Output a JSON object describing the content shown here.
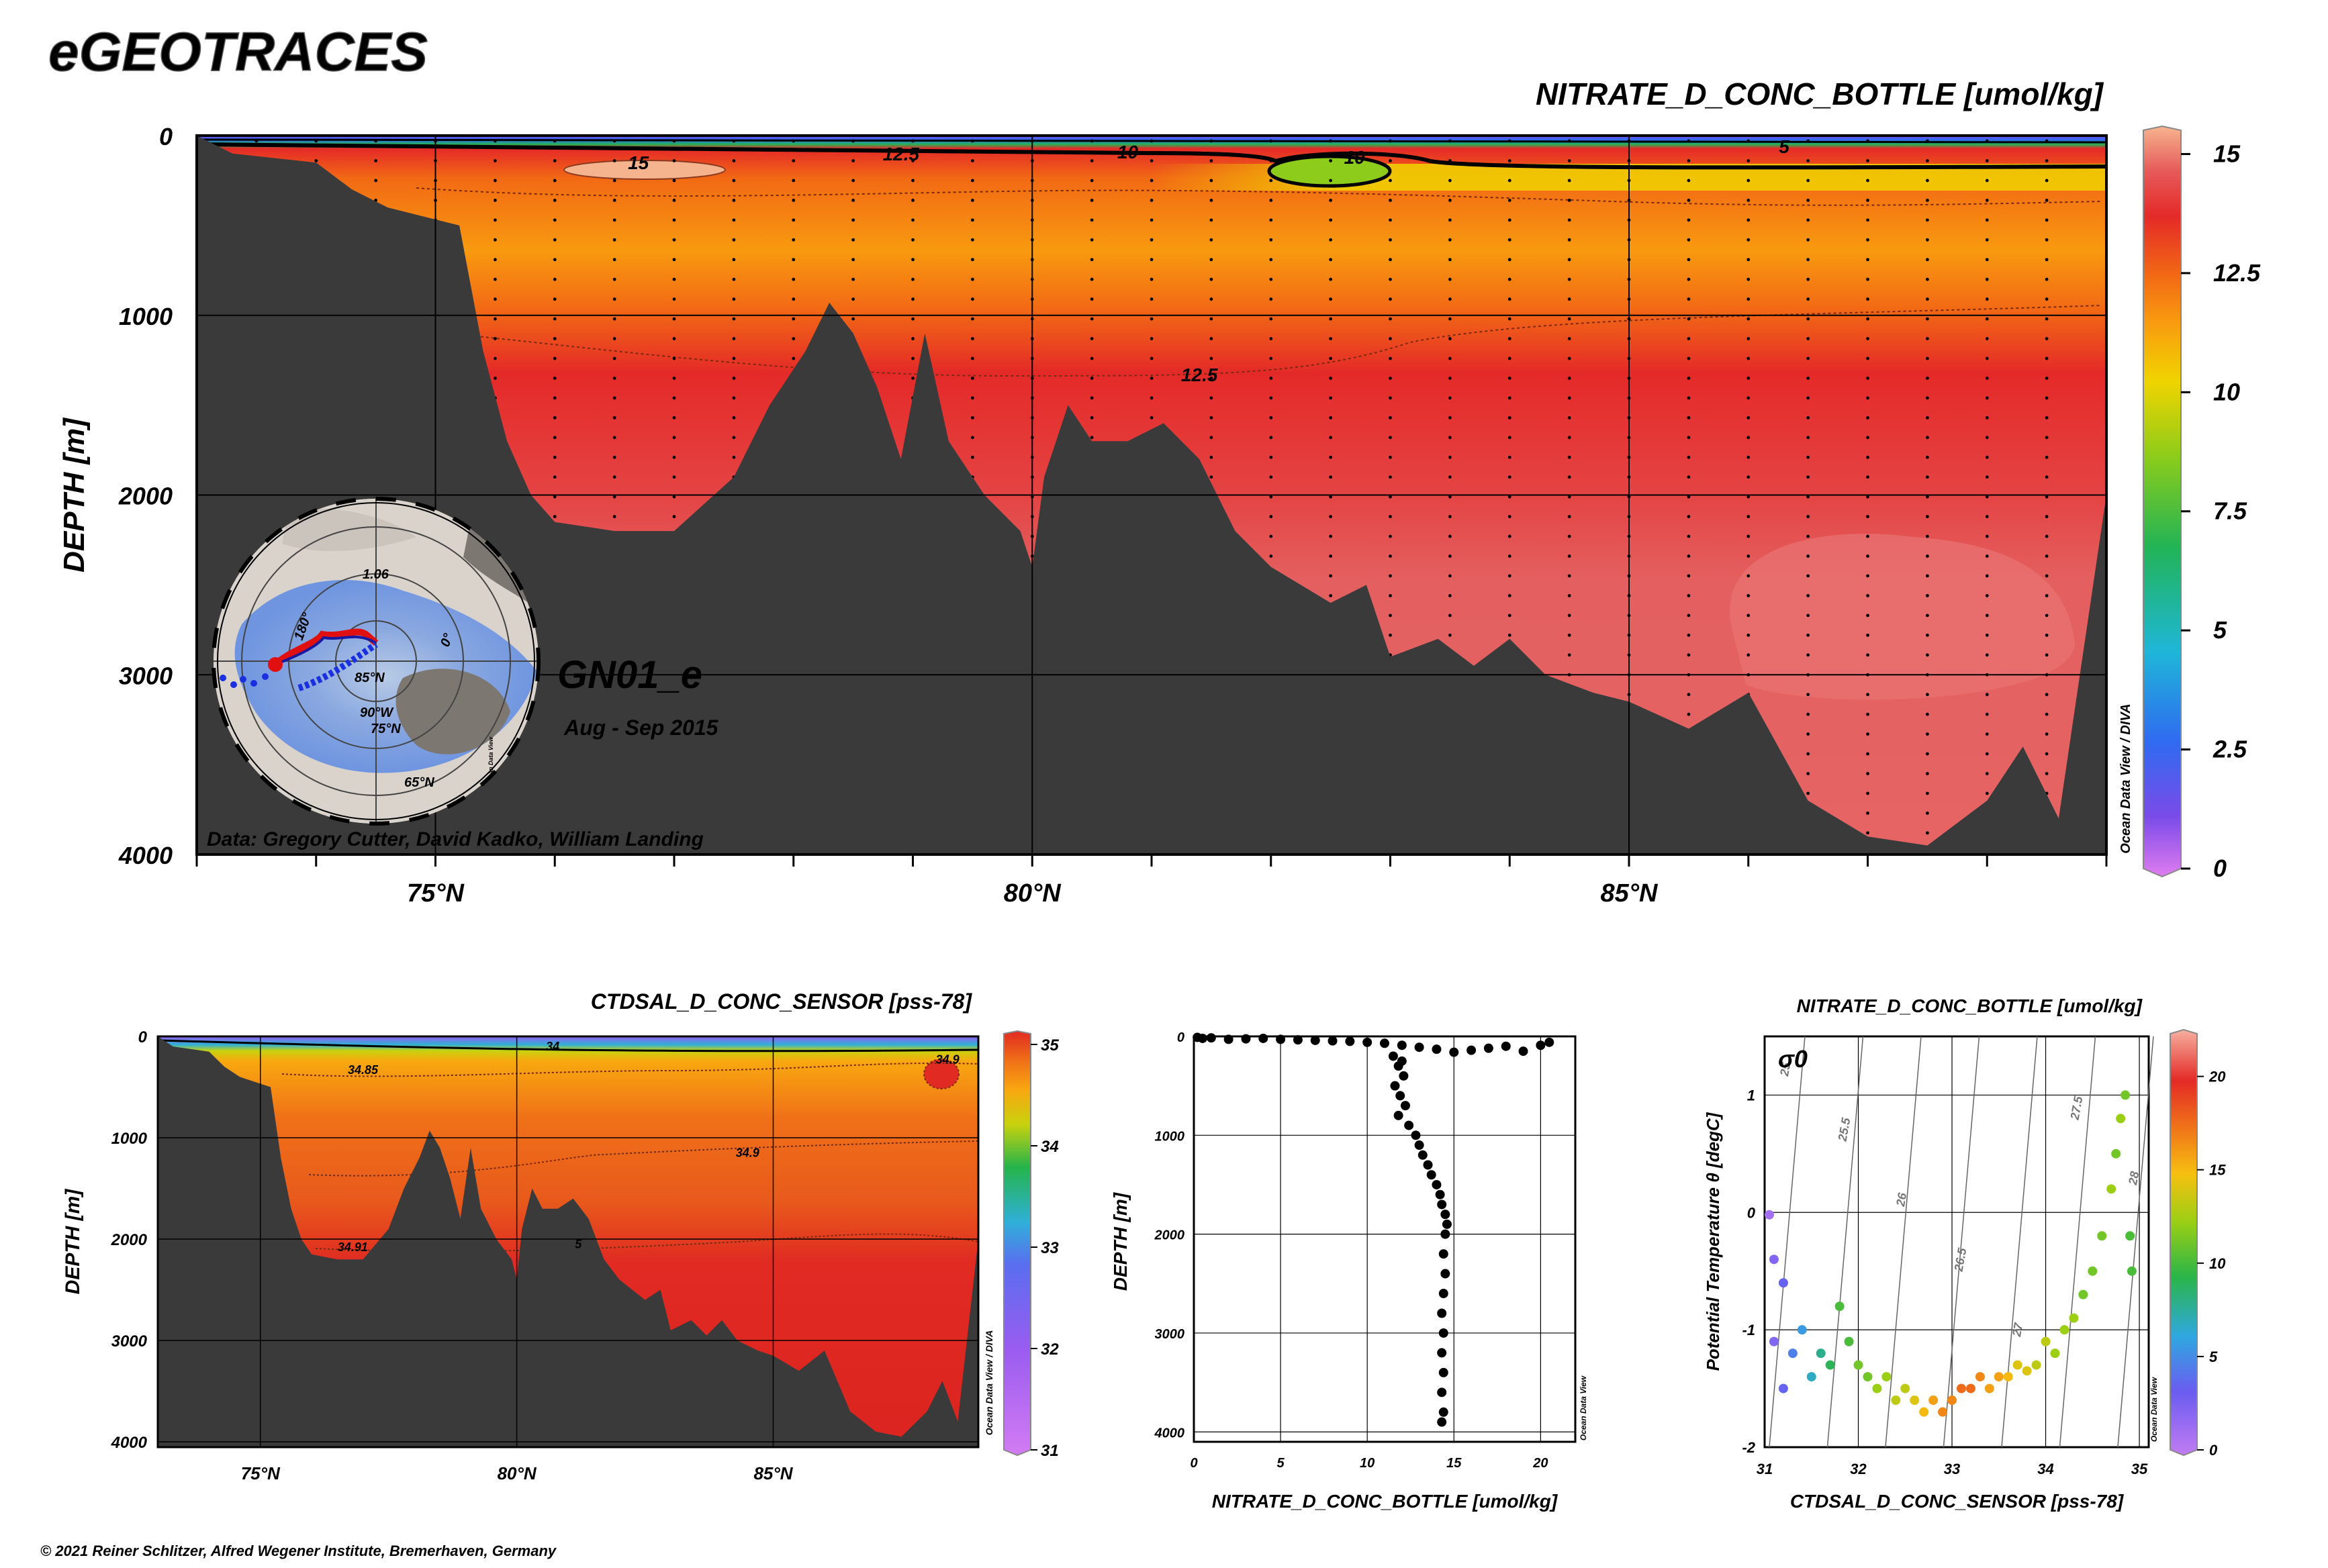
{
  "brand": "eGEOTRACES",
  "copyright": "© 2021 Reiner Schlitzer, Alfred Wegener Institute, Bremerhaven, Germany",
  "section": {
    "title": "NITRATE_D_CONC_BOTTLE [umol/kg]",
    "cruise_label": "GN01_e",
    "date_label": "Aug - Sep 2015",
    "credit": "Data: Gregory Cutter, David Kadko, William Landing",
    "watermark": "Ocean Data View / DIVA",
    "ylabel": "DEPTH [m]"
  },
  "salinity": {
    "title": "CTDSAL_D_CONC_SENSOR [pss-78]",
    "ylabel": "DEPTH [m]",
    "watermark": "Ocean Data View / DIVA"
  },
  "profile": {
    "xlabel": "NITRATE_D_CONC_BOTTLE [umol/kg]",
    "ylabel": "DEPTH [m]",
    "watermark": "Ocean Data View"
  },
  "ts": {
    "title": "NITRATE_D_CONC_BOTTLE [umol/kg]",
    "xlabel": "CTDSAL_D_CONC_SENSOR [pss-78]",
    "ylabel": "Potential Temperature θ [degC]",
    "sigma_label": "σ0",
    "watermark": "Ocean Data View"
  },
  "map": {
    "labels": [
      "180°",
      "0°",
      "85°N",
      "90°W",
      "75°N",
      "65°N",
      "1.06"
    ],
    "watermark": "Ocean Data View"
  },
  "colors": {
    "bathymetry": "#3a3a3a",
    "nitrate_scale": [
      "#e07cf0",
      "#7a4be8",
      "#2f6bf0",
      "#1fb6d8",
      "#22b455",
      "#8dcc1a",
      "#f0d400",
      "#f89a10",
      "#f26a14",
      "#e42a28",
      "#e65a5a",
      "#f6b48e"
    ],
    "salinity_scale": [
      "#d27cf2",
      "#9a5cf0",
      "#5a6ef0",
      "#2fb0d8",
      "#26b44a",
      "#c8d20e",
      "#f8a810",
      "#f07018",
      "#e02a22"
    ],
    "ts_scale": [
      "#c27cf2",
      "#6a5cf0",
      "#2fa8e0",
      "#2bb548",
      "#9ccf14",
      "#f6c010",
      "#f07a18",
      "#e42a26",
      "#f6b0a0"
    ]
  },
  "chart_data": [
    {
      "type": "heatmap",
      "title": "NITRATE_D_CONC_BOTTLE [umol/kg]",
      "xlabel": "",
      "ylabel": "DEPTH [m]",
      "x_ticklabels": [
        "75°N",
        "80°N",
        "85°N"
      ],
      "x_ticks": [
        75,
        80,
        85
      ],
      "xlim": [
        73,
        89
      ],
      "y_ticks": [
        0,
        1000,
        2000,
        3000,
        4000
      ],
      "ylim": [
        0,
        4000
      ],
      "colorbar": {
        "ticks": [
          0,
          2.5,
          5,
          7.5,
          10,
          12.5,
          15
        ],
        "tick_labels": [
          "0",
          "2.5",
          "5",
          "7.5",
          "10",
          "12.5",
          "15"
        ],
        "range": [
          0,
          15.5
        ]
      },
      "contour_labels": [
        {
          "value": "15",
          "lat": 76.7,
          "depth": 150
        },
        {
          "value": "12.5",
          "lat": 78.9,
          "depth": 100
        },
        {
          "value": "10",
          "lat": 80.8,
          "depth": 90
        },
        {
          "value": "10",
          "lat": 82.7,
          "depth": 120
        },
        {
          "value": "5",
          "lat": 86.3,
          "depth": 60
        },
        {
          "value": "12.5",
          "lat": 81.4,
          "depth": 1330
        }
      ],
      "bathymetry": [
        [
          73,
          0
        ],
        [
          73.3,
          100
        ],
        [
          74.0,
          150
        ],
        [
          74.3,
          300
        ],
        [
          74.6,
          400
        ],
        [
          75.2,
          500
        ],
        [
          75.4,
          1200
        ],
        [
          75.6,
          1700
        ],
        [
          75.8,
          2000
        ],
        [
          76.0,
          2150
        ],
        [
          76.5,
          2200
        ],
        [
          77.0,
          2200
        ],
        [
          77.5,
          1900
        ],
        [
          77.8,
          1500
        ],
        [
          78.1,
          1200
        ],
        [
          78.3,
          930
        ],
        [
          78.5,
          1100
        ],
        [
          78.7,
          1400
        ],
        [
          78.9,
          1800
        ],
        [
          79.1,
          1100
        ],
        [
          79.3,
          1700
        ],
        [
          79.6,
          2000
        ],
        [
          79.9,
          2200
        ],
        [
          80.0,
          2400
        ],
        [
          80.1,
          1900
        ],
        [
          80.3,
          1500
        ],
        [
          80.5,
          1700
        ],
        [
          80.8,
          1700
        ],
        [
          81.1,
          1600
        ],
        [
          81.4,
          1800
        ],
        [
          81.7,
          2200
        ],
        [
          82.0,
          2400
        ],
        [
          82.5,
          2600
        ],
        [
          82.8,
          2500
        ],
        [
          83.0,
          2900
        ],
        [
          83.4,
          2800
        ],
        [
          83.7,
          2950
        ],
        [
          84.0,
          2800
        ],
        [
          84.3,
          3000
        ],
        [
          84.7,
          3100
        ],
        [
          85.0,
          3150
        ],
        [
          85.5,
          3300
        ],
        [
          86.0,
          3100
        ],
        [
          86.5,
          3700
        ],
        [
          87.0,
          3900
        ],
        [
          87.5,
          3950
        ],
        [
          88.0,
          3700
        ],
        [
          88.3,
          3400
        ],
        [
          88.6,
          3800
        ],
        [
          89.0,
          2000
        ]
      ],
      "stations_lat": [
        73.5,
        74.0,
        74.5,
        75.0,
        75.5,
        76.0,
        76.5,
        77.0,
        77.5,
        78.0,
        78.5,
        79.0,
        79.5,
        80.0,
        80.5,
        81.0,
        81.5,
        82.0,
        82.5,
        83.0,
        83.5,
        84.0,
        84.5,
        85.0,
        85.5,
        86.0,
        86.5,
        87.0,
        87.5,
        88.0,
        88.5
      ]
    },
    {
      "type": "heatmap",
      "title": "CTDSAL_D_CONC_SENSOR [pss-78]",
      "xlabel": "",
      "ylabel": "DEPTH [m]",
      "x_ticklabels": [
        "75°N",
        "80°N",
        "85°N"
      ],
      "x_ticks": [
        75,
        80,
        85
      ],
      "xlim": [
        73,
        89
      ],
      "y_ticks": [
        0,
        1000,
        2000,
        3000,
        4000
      ],
      "ylim": [
        0,
        4000
      ],
      "colorbar": {
        "ticks": [
          31,
          32,
          33,
          34,
          35
        ],
        "tick_labels": [
          "31",
          "32",
          "33",
          "34",
          "35"
        ],
        "range": [
          31,
          35
        ]
      },
      "contour_labels": [
        {
          "value": "34",
          "lat": 80.7,
          "depth": 100
        },
        {
          "value": "34.85",
          "lat": 77.0,
          "depth": 330
        },
        {
          "value": "34.9",
          "lat": 88.4,
          "depth": 230
        },
        {
          "value": "34.9",
          "lat": 84.5,
          "depth": 1150
        },
        {
          "value": "34.91",
          "lat": 76.8,
          "depth": 2080
        },
        {
          "value": "5",
          "lat": 81.2,
          "depth": 2050
        }
      ]
    },
    {
      "type": "scatter",
      "title": "",
      "xlabel": "NITRATE_D_CONC_BOTTLE [umol/kg]",
      "ylabel": "DEPTH [m]",
      "xlim": [
        0,
        22
      ],
      "ylim": [
        0,
        4100
      ],
      "x_ticks": [
        0,
        5,
        10,
        15,
        20
      ],
      "y_ticks": [
        0,
        1000,
        2000,
        3000,
        4000
      ],
      "points": [
        [
          0.2,
          10
        ],
        [
          0.5,
          20
        ],
        [
          1,
          15
        ],
        [
          2,
          30
        ],
        [
          3,
          25
        ],
        [
          4,
          20
        ],
        [
          5,
          30
        ],
        [
          6,
          35
        ],
        [
          7,
          40
        ],
        [
          8,
          45
        ],
        [
          9,
          50
        ],
        [
          10,
          60
        ],
        [
          11,
          70
        ],
        [
          12,
          90
        ],
        [
          13,
          110
        ],
        [
          14,
          130
        ],
        [
          15,
          160
        ],
        [
          16,
          140
        ],
        [
          17,
          120
        ],
        [
          18,
          100
        ],
        [
          19,
          150
        ],
        [
          20,
          90
        ],
        [
          20.5,
          60
        ],
        [
          11.5,
          200
        ],
        [
          12,
          250
        ],
        [
          11.8,
          300
        ],
        [
          12.1,
          400
        ],
        [
          11.6,
          500
        ],
        [
          11.9,
          600
        ],
        [
          12.2,
          700
        ],
        [
          11.8,
          800
        ],
        [
          12.4,
          900
        ],
        [
          12.8,
          1000
        ],
        [
          13.0,
          1100
        ],
        [
          13.2,
          1200
        ],
        [
          13.5,
          1300
        ],
        [
          13.7,
          1400
        ],
        [
          14.0,
          1500
        ],
        [
          14.2,
          1600
        ],
        [
          14.3,
          1700
        ],
        [
          14.5,
          1800
        ],
        [
          14.6,
          1900
        ],
        [
          14.5,
          2000
        ],
        [
          14.4,
          2200
        ],
        [
          14.5,
          2400
        ],
        [
          14.4,
          2600
        ],
        [
          14.3,
          2800
        ],
        [
          14.4,
          3000
        ],
        [
          14.3,
          3200
        ],
        [
          14.4,
          3400
        ],
        [
          14.3,
          3600
        ],
        [
          14.4,
          3800
        ],
        [
          14.3,
          3900
        ]
      ]
    },
    {
      "type": "scatter",
      "title": "NITRATE_D_CONC_BOTTLE [umol/kg]",
      "xlabel": "CTDSAL_D_CONC_SENSOR [pss-78]",
      "ylabel": "Potential Temperature θ [degC]",
      "xlim": [
        31,
        35.1
      ],
      "ylim": [
        -2,
        1.5
      ],
      "x_ticks": [
        31,
        32,
        33,
        34,
        35
      ],
      "y_ticks": [
        -2,
        -1,
        0,
        1
      ],
      "colorbar": {
        "ticks": [
          0,
          5,
          10,
          15,
          20
        ],
        "tick_labels": [
          "0",
          "5",
          "10",
          "15",
          "20"
        ],
        "range": [
          0,
          22
        ]
      },
      "isopycnal_labels": [
        "25",
        "25.5",
        "26",
        "26.5",
        "27",
        "27.5",
        "28"
      ],
      "points": [
        [
          31.05,
          -0.02,
          1
        ],
        [
          31.1,
          -0.4,
          2
        ],
        [
          31.2,
          -0.6,
          3
        ],
        [
          31.1,
          -1.1,
          2
        ],
        [
          31.3,
          -1.2,
          4
        ],
        [
          31.2,
          -1.5,
          3
        ],
        [
          31.4,
          -1.0,
          5
        ],
        [
          31.5,
          -1.4,
          6
        ],
        [
          31.6,
          -1.2,
          7
        ],
        [
          31.7,
          -1.3,
          8
        ],
        [
          31.8,
          -0.8,
          9
        ],
        [
          31.9,
          -1.1,
          9
        ],
        [
          32.0,
          -1.3,
          10
        ],
        [
          32.1,
          -1.4,
          10
        ],
        [
          32.2,
          -1.5,
          11
        ],
        [
          32.3,
          -1.4,
          11
        ],
        [
          32.4,
          -1.6,
          12
        ],
        [
          32.5,
          -1.5,
          12
        ],
        [
          32.6,
          -1.6,
          13
        ],
        [
          32.7,
          -1.7,
          14
        ],
        [
          32.8,
          -1.6,
          15
        ],
        [
          32.9,
          -1.7,
          16
        ],
        [
          33.0,
          -1.6,
          16
        ],
        [
          33.1,
          -1.5,
          17
        ],
        [
          33.2,
          -1.5,
          17
        ],
        [
          33.3,
          -1.4,
          16
        ],
        [
          33.4,
          -1.5,
          15
        ],
        [
          33.5,
          -1.4,
          15
        ],
        [
          33.6,
          -1.4,
          14
        ],
        [
          33.7,
          -1.3,
          13
        ],
        [
          33.8,
          -1.35,
          13
        ],
        [
          33.9,
          -1.3,
          12
        ],
        [
          34.0,
          -1.1,
          12
        ],
        [
          34.1,
          -1.2,
          11
        ],
        [
          34.2,
          -1.0,
          11
        ],
        [
          34.3,
          -0.9,
          11
        ],
        [
          34.4,
          -0.7,
          10
        ],
        [
          34.5,
          -0.5,
          10
        ],
        [
          34.6,
          -0.2,
          10
        ],
        [
          34.7,
          0.2,
          11
        ],
        [
          34.75,
          0.5,
          10
        ],
        [
          34.8,
          0.8,
          11
        ],
        [
          34.85,
          1.0,
          10
        ],
        [
          34.9,
          -0.2,
          9
        ],
        [
          34.92,
          -0.5,
          9
        ]
      ]
    }
  ]
}
